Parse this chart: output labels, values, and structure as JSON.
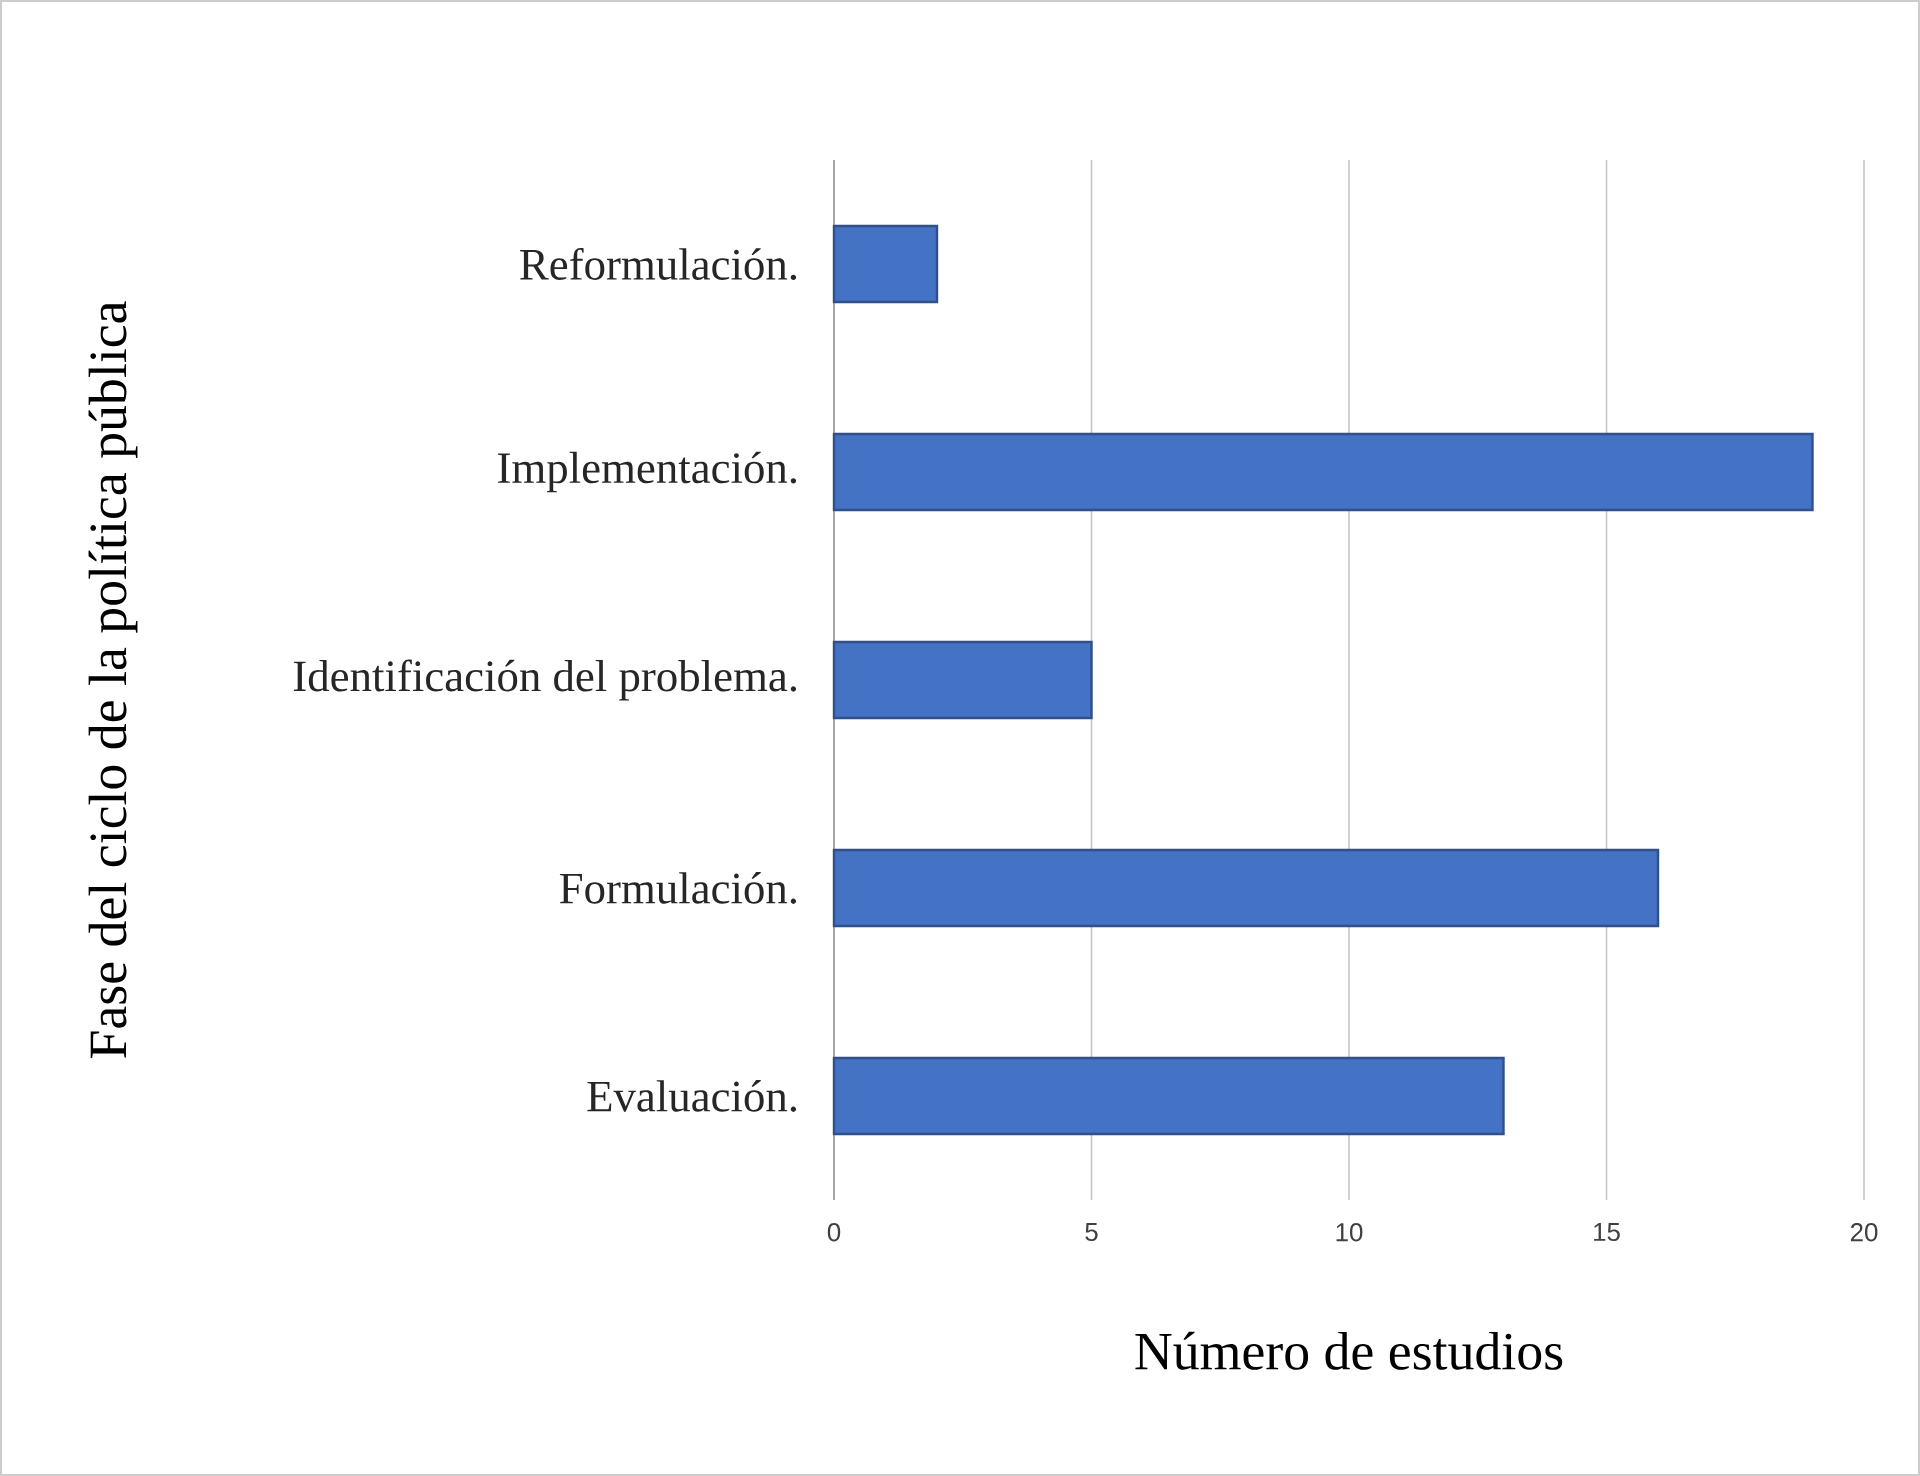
{
  "chart_data": {
    "type": "bar",
    "orientation": "horizontal",
    "xlabel": "Número de estudios",
    "ylabel": "Fase del ciclo de la política pública",
    "categories": [
      "Reformulación.",
      "Implementación.",
      "Identificación del problema.",
      "Formulación.",
      "Evaluación."
    ],
    "values": [
      2,
      19,
      5,
      16,
      13
    ],
    "color": "#4472c4",
    "xlim": [
      0,
      20
    ],
    "xticks": [
      0,
      5,
      10,
      15,
      20
    ],
    "grid": "x"
  }
}
